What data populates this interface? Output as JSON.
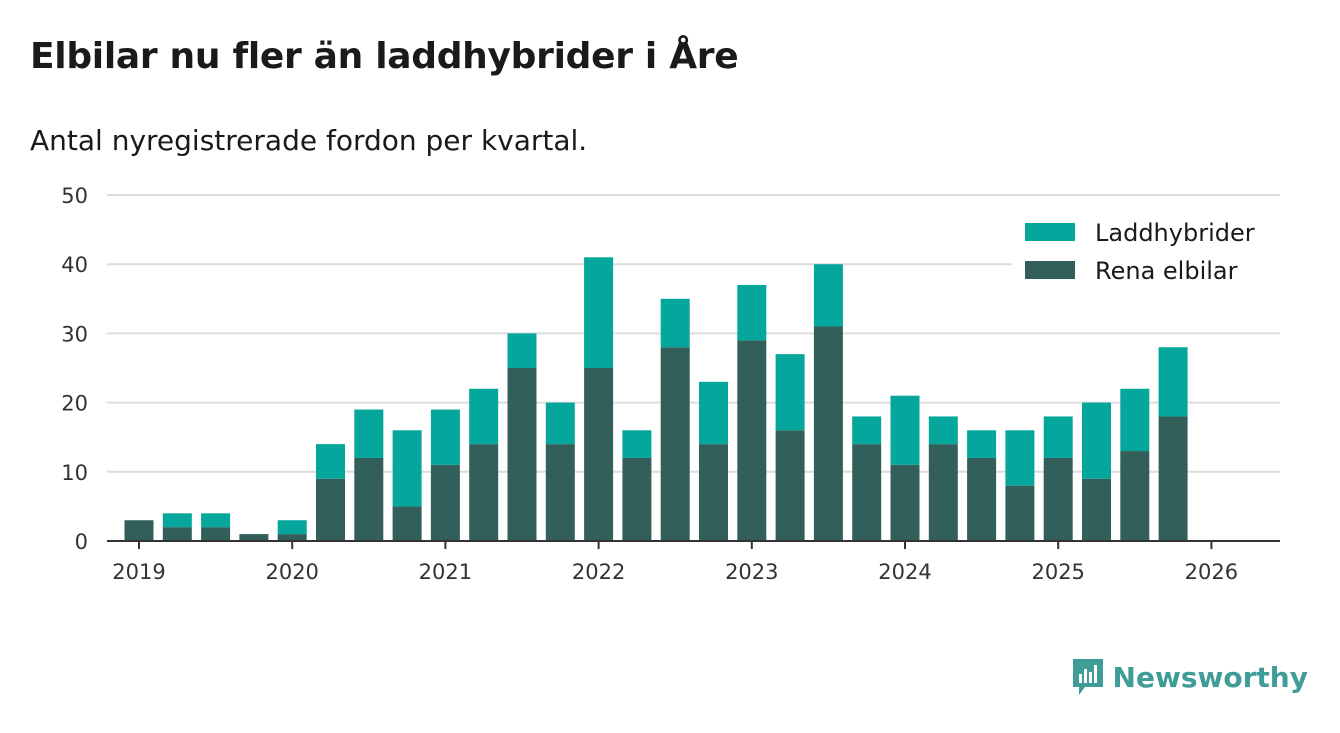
{
  "title": "Elbilar nu fler än laddhybrider i Åre",
  "subtitle": "Antal nyregistrerade fordon per kvartal.",
  "brand": {
    "name": "Newsworthy",
    "icon": "bar-chart-bubble-icon"
  },
  "colors": {
    "ev": "#335f5b",
    "phev": "#05a69b",
    "grid": "#dcdcdc",
    "axis": "#333333",
    "brand": "#3f9c96"
  },
  "chart_data": {
    "type": "bar",
    "stacked": true,
    "title": "Elbilar nu fler än laddhybrider i Åre",
    "subtitle": "Antal nyregistrerade fordon per kvartal.",
    "xlabel": "",
    "ylabel": "",
    "ylim": [
      0,
      50
    ],
    "yticks": [
      0,
      10,
      20,
      30,
      40,
      50
    ],
    "x_tick_labels": [
      "2019",
      "2020",
      "2021",
      "2022",
      "2023",
      "2024",
      "2025",
      "2026"
    ],
    "x_tick_quarter_index": [
      0,
      4,
      8,
      12,
      16,
      20,
      24,
      28
    ],
    "categories": [
      "2019 Q1",
      "2019 Q2",
      "2019 Q3",
      "2019 Q4",
      "2020 Q1",
      "2020 Q2",
      "2020 Q3",
      "2020 Q4",
      "2021 Q1",
      "2021 Q2",
      "2021 Q3",
      "2021 Q4",
      "2022 Q1",
      "2022 Q2",
      "2022 Q3",
      "2022 Q4",
      "2023 Q1",
      "2023 Q2",
      "2023 Q3",
      "2023 Q4",
      "2024 Q1",
      "2024 Q2",
      "2024 Q3",
      "2024 Q4",
      "2025 Q1",
      "2025 Q2",
      "2025 Q3",
      "2025 Q4"
    ],
    "series": [
      {
        "name": "Rena elbilar",
        "values": [
          3,
          2,
          2,
          1,
          1,
          9,
          12,
          5,
          11,
          14,
          25,
          14,
          25,
          12,
          28,
          14,
          29,
          16,
          31,
          14,
          11,
          14,
          12,
          8,
          12,
          9,
          13,
          18
        ]
      },
      {
        "name": "Laddhybrider",
        "values": [
          0,
          2,
          2,
          0,
          2,
          5,
          7,
          11,
          8,
          8,
          5,
          6,
          16,
          4,
          7,
          9,
          8,
          11,
          9,
          4,
          10,
          4,
          4,
          8,
          6,
          11,
          9,
          10
        ]
      }
    ],
    "legend": [
      "Laddhybrider",
      "Rena elbilar"
    ],
    "legend_position": "top-right",
    "grid": true
  }
}
